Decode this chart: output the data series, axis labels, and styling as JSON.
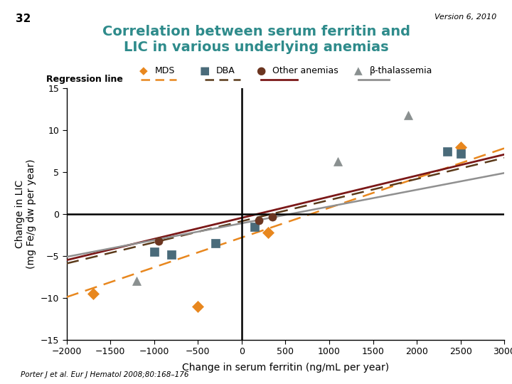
{
  "title_line1": "Correlation between serum ferritin and",
  "title_line2": "LIC in various underlying anemias",
  "title_color": "#2E8B8B",
  "version_text": "Version 6, 2010",
  "page_number": "32",
  "xlabel": "Change in serum ferritin (ng/mL per year)",
  "ylabel": "Change in LIC\n(mg Fe/g dw per year)",
  "xlim": [
    -2000,
    3000
  ],
  "ylim": [
    -15,
    15
  ],
  "xticks": [
    -2000,
    -1500,
    -1000,
    -500,
    0,
    500,
    1000,
    1500,
    2000,
    2500,
    3000
  ],
  "yticks": [
    -15,
    -10,
    -5,
    0,
    5,
    10,
    15
  ],
  "citation": "Porter J et al. Eur J Hematol 2008;80:168–176",
  "mds_points": [
    [
      -1700,
      -9.5
    ],
    [
      -500,
      -11.0
    ],
    [
      300,
      -2.2
    ],
    [
      2500,
      8.0
    ]
  ],
  "dba_points": [
    [
      -1000,
      -4.5
    ],
    [
      -800,
      -4.8
    ],
    [
      -300,
      -3.5
    ],
    [
      150,
      -1.5
    ],
    [
      2350,
      7.5
    ],
    [
      2500,
      7.2
    ]
  ],
  "other_points": [
    [
      -950,
      -3.2
    ],
    [
      200,
      -0.8
    ],
    [
      350,
      -0.3
    ]
  ],
  "beta_points": [
    [
      -1200,
      -8.0
    ],
    [
      1100,
      6.3
    ],
    [
      1900,
      11.8
    ]
  ],
  "mds_color": "#E8871E",
  "dba_color": "#4A6B7A",
  "other_color": "#6B3520",
  "beta_color": "#8A9090",
  "reg_mds_slope": 0.00355,
  "reg_mds_intercept": -2.8,
  "reg_dba_slope": 0.00252,
  "reg_dba_intercept": -0.85,
  "reg_other_slope": 0.00252,
  "reg_other_intercept": -0.45,
  "reg_beta_slope": 0.002,
  "reg_beta_intercept": -1.1,
  "reg_mds_color": "#E8871E",
  "reg_dba_color": "#5B3A1A",
  "reg_other_color": "#7B1818",
  "reg_beta_color": "#909090",
  "bg_color": "#FFFFFF",
  "teal_bar_color": "#2B8A8A"
}
